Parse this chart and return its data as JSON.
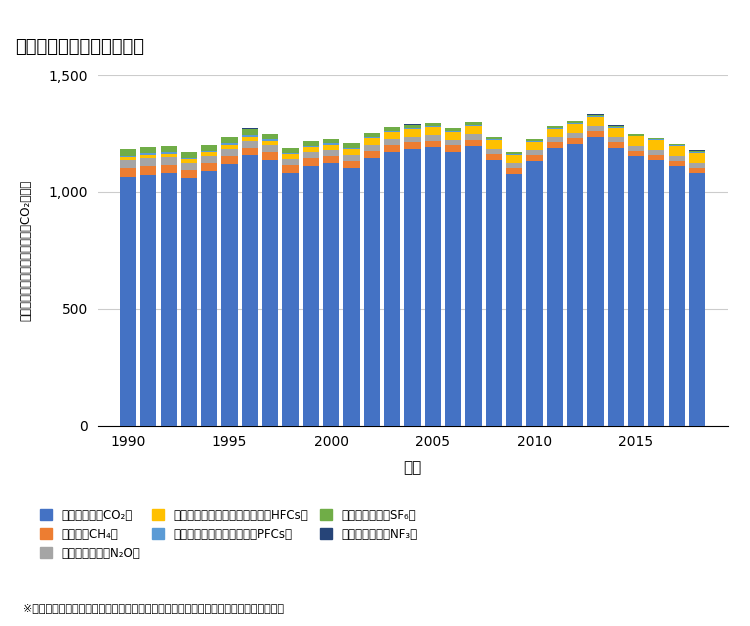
{
  "title": "日本の温室効果ガス排出量",
  "xlabel": "年度",
  "ylabel": "温室効果ガス排出量（百万トンCO₂換算）",
  "ylim": [
    0,
    1500
  ],
  "yticks": [
    0,
    500,
    1000,
    1500
  ],
  "years": [
    1990,
    1991,
    1992,
    1993,
    1994,
    1995,
    1996,
    1997,
    1998,
    1999,
    2000,
    2001,
    2002,
    2003,
    2004,
    2005,
    2006,
    2007,
    2008,
    2009,
    2010,
    2011,
    2012,
    2013,
    2014,
    2015,
    2016,
    2017,
    2018
  ],
  "CO2": [
    1066,
    1074,
    1080,
    1058,
    1088,
    1121,
    1157,
    1138,
    1083,
    1113,
    1122,
    1104,
    1147,
    1171,
    1184,
    1191,
    1172,
    1197,
    1136,
    1077,
    1133,
    1188,
    1207,
    1235,
    1189,
    1152,
    1135,
    1109,
    1080
  ],
  "CH4": [
    38,
    38,
    37,
    36,
    35,
    34,
    33,
    33,
    32,
    31,
    30,
    30,
    29,
    29,
    28,
    28,
    27,
    27,
    26,
    26,
    25,
    25,
    25,
    25,
    24,
    24,
    24,
    23,
    23
  ],
  "N2O": [
    32,
    32,
    31,
    31,
    30,
    30,
    30,
    29,
    28,
    27,
    27,
    26,
    26,
    26,
    25,
    25,
    24,
    24,
    23,
    22,
    22,
    22,
    21,
    21,
    21,
    20,
    20,
    20,
    19
  ],
  "HFCs": [
    12,
    13,
    14,
    14,
    16,
    16,
    17,
    18,
    19,
    21,
    23,
    25,
    27,
    29,
    31,
    33,
    34,
    36,
    36,
    34,
    35,
    36,
    38,
    40,
    40,
    42,
    43,
    44,
    46
  ],
  "PFCs": [
    8,
    8,
    8,
    8,
    7,
    7,
    7,
    7,
    6,
    6,
    6,
    5,
    5,
    5,
    5,
    4,
    4,
    4,
    4,
    3,
    3,
    3,
    3,
    3,
    3,
    3,
    3,
    3,
    3
  ],
  "SF6": [
    28,
    27,
    26,
    25,
    26,
    27,
    27,
    24,
    21,
    20,
    19,
    18,
    17,
    16,
    15,
    14,
    13,
    12,
    11,
    10,
    9,
    8,
    8,
    7,
    7,
    7,
    6,
    6,
    6
  ],
  "NF3": [
    1,
    1,
    1,
    1,
    1,
    1,
    1,
    1,
    1,
    1,
    1,
    1,
    1,
    1,
    1,
    1,
    1,
    1,
    1,
    1,
    1,
    1,
    1,
    1,
    1,
    1,
    1,
    1,
    1
  ],
  "colors": {
    "CO2": "#4472C4",
    "CH4": "#ED7D31",
    "N2O": "#A5A5A5",
    "HFCs": "#FFC000",
    "PFCs": "#5B9BD5",
    "SF6": "#70AD47",
    "NF3": "#264478"
  },
  "legend_labels": {
    "CO2": "二酸化炭素（CO₂）",
    "CH4": "メタン（CH₄）",
    "N2O": "一酸化二窒素（N₂O）",
    "HFCs": "ハイドロフルオロカーボン類（HFCs）",
    "PFCs": "パーフルオロカーボン類（PFCs）",
    "SF6": "六ふっ化硫黄（SF₆）",
    "NF3": "三ふっ化窒素（NF₃）"
  },
  "footnote": "※出典　温室効果ガスインベントリオフィス（国立環境研究所）のデータをもとに作成",
  "xticks": [
    1990,
    1995,
    2000,
    2005,
    2010,
    2015
  ],
  "background_color": "#FFFFFF"
}
